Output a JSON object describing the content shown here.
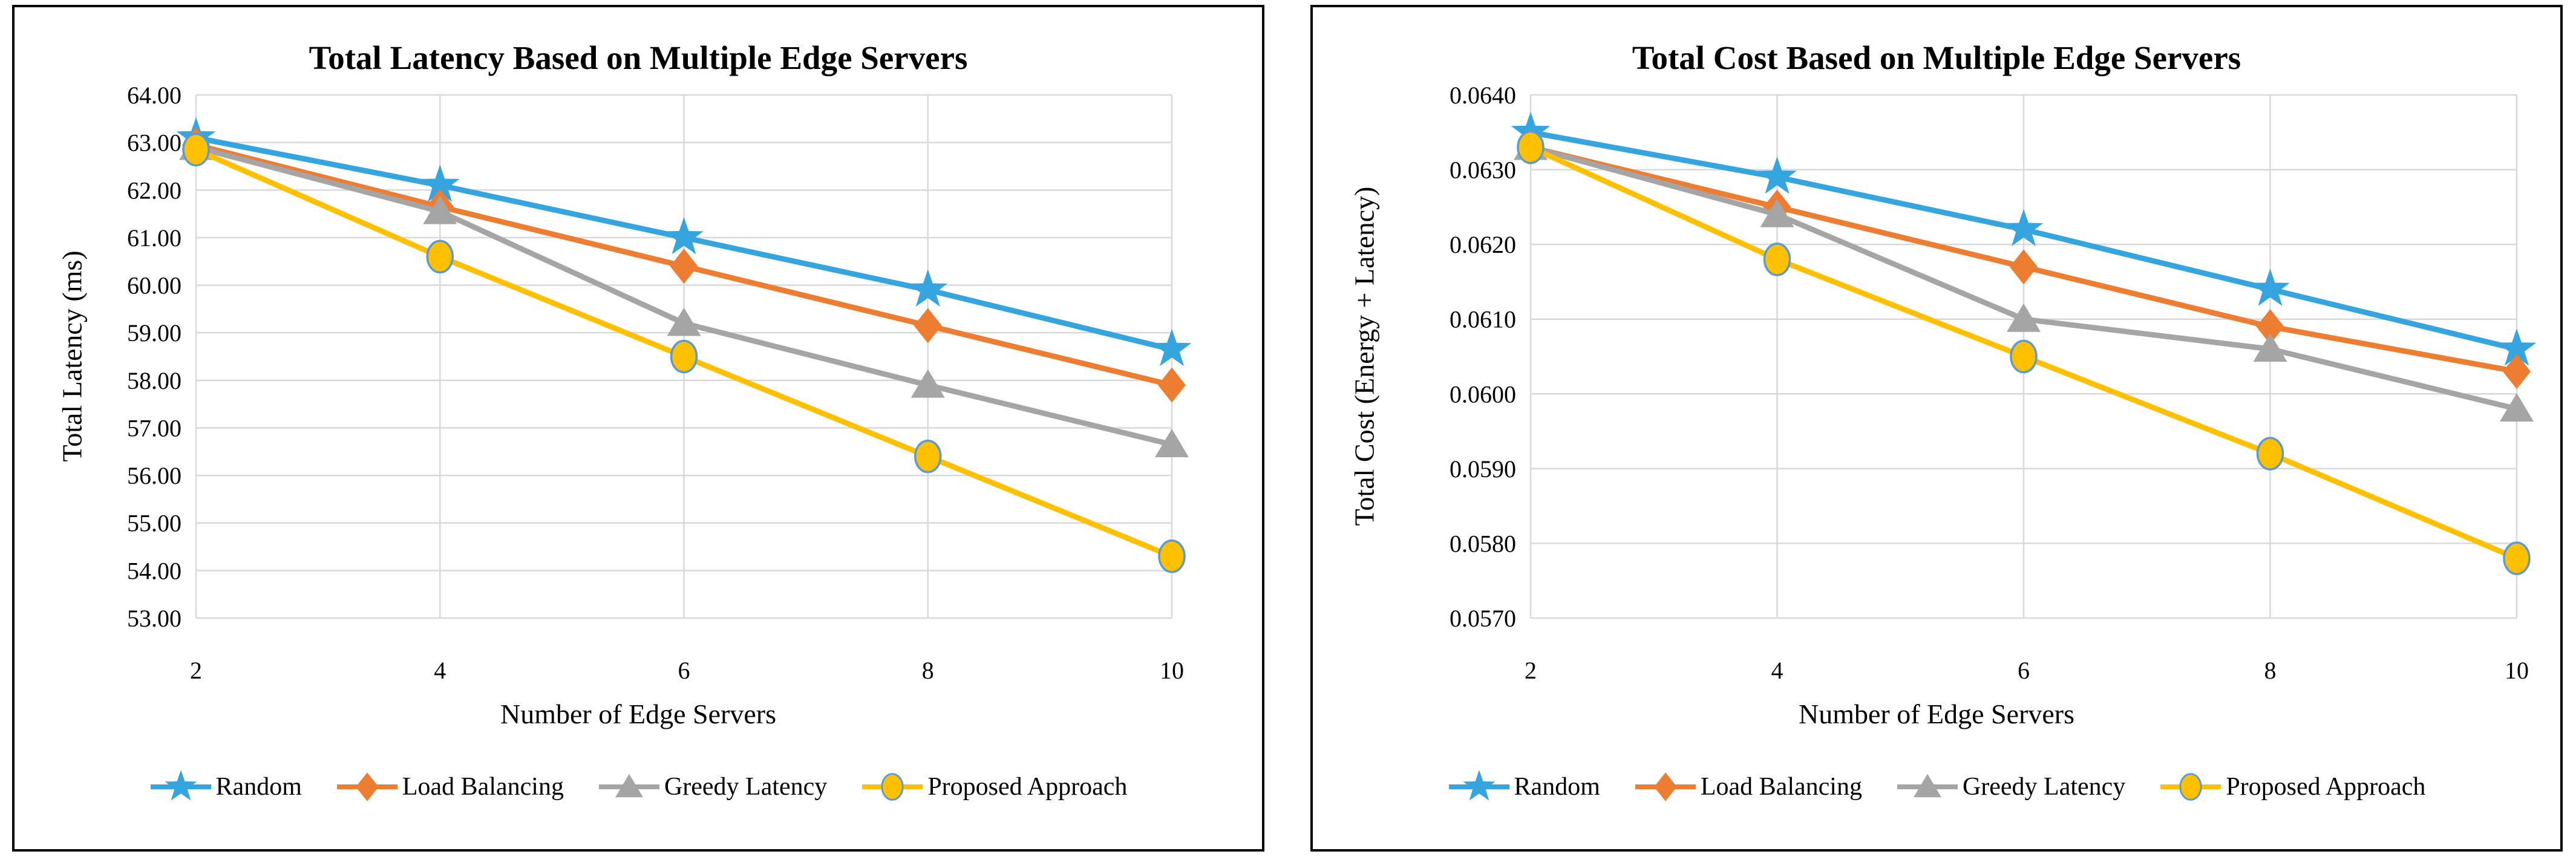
{
  "page": {
    "background": "#FFFFFF",
    "panel_border_color": "#000000",
    "gridline_color": "#D9D9D9"
  },
  "chart_data": [
    {
      "type": "line",
      "title": "Total Latency Based on Multiple Edge Servers",
      "xlabel": "Number of Edge Servers",
      "ylabel": "Total Latency (ms)",
      "x": [
        2,
        4,
        6,
        8,
        10
      ],
      "xticks": [
        "2",
        "4",
        "6",
        "8",
        "10"
      ],
      "yticks": [
        "64.00",
        "63.00",
        "62.00",
        "61.00",
        "60.00",
        "59.00",
        "58.00",
        "57.00",
        "56.00",
        "55.00",
        "54.00",
        "53.00"
      ],
      "ylim": [
        53.0,
        64.0
      ],
      "grid": true,
      "legend_position": "bottom",
      "series": [
        {
          "name": "Random",
          "marker": "star",
          "color": "#35A5DF",
          "values": [
            63.1,
            62.1,
            61.0,
            59.9,
            58.65
          ]
        },
        {
          "name": "Load Balancing",
          "marker": "diamond",
          "color": "#ED7D31",
          "values": [
            62.95,
            61.65,
            60.4,
            59.15,
            57.9
          ]
        },
        {
          "name": "Greedy Latency",
          "marker": "triangle",
          "color": "#A5A5A5",
          "values": [
            62.9,
            61.55,
            59.2,
            57.9,
            56.65
          ]
        },
        {
          "name": "Proposed Approach",
          "marker": "circle",
          "color": "#FFC000",
          "marker_outline": "#5B9BD5",
          "values": [
            62.85,
            60.6,
            58.5,
            56.4,
            54.3
          ]
        }
      ]
    },
    {
      "type": "line",
      "title": "Total Cost Based on Multiple Edge Servers",
      "xlabel": "Number of Edge Servers",
      "ylabel": "Total Cost (Energy + Latency)",
      "x": [
        2,
        4,
        6,
        8,
        10
      ],
      "xticks": [
        "2",
        "4",
        "6",
        "8",
        "10"
      ],
      "yticks": [
        "0.0640",
        "0.0630",
        "0.0620",
        "0.0610",
        "0.0600",
        "0.0590",
        "0.0580",
        "0.0570"
      ],
      "ylim": [
        0.057,
        0.064
      ],
      "grid": true,
      "legend_position": "bottom",
      "series": [
        {
          "name": "Random",
          "marker": "star",
          "color": "#35A5DF",
          "values": [
            0.0635,
            0.0629,
            0.0622,
            0.0614,
            0.0606
          ]
        },
        {
          "name": "Load Balancing",
          "marker": "diamond",
          "color": "#ED7D31",
          "values": [
            0.0633,
            0.0625,
            0.0617,
            0.0609,
            0.0603
          ]
        },
        {
          "name": "Greedy Latency",
          "marker": "triangle",
          "color": "#A5A5A5",
          "values": [
            0.0633,
            0.0624,
            0.061,
            0.0606,
            0.0598
          ]
        },
        {
          "name": "Proposed Approach",
          "marker": "circle",
          "color": "#FFC000",
          "marker_outline": "#5B9BD5",
          "values": [
            0.0633,
            0.0618,
            0.0605,
            0.0592,
            0.0578
          ]
        }
      ]
    }
  ]
}
